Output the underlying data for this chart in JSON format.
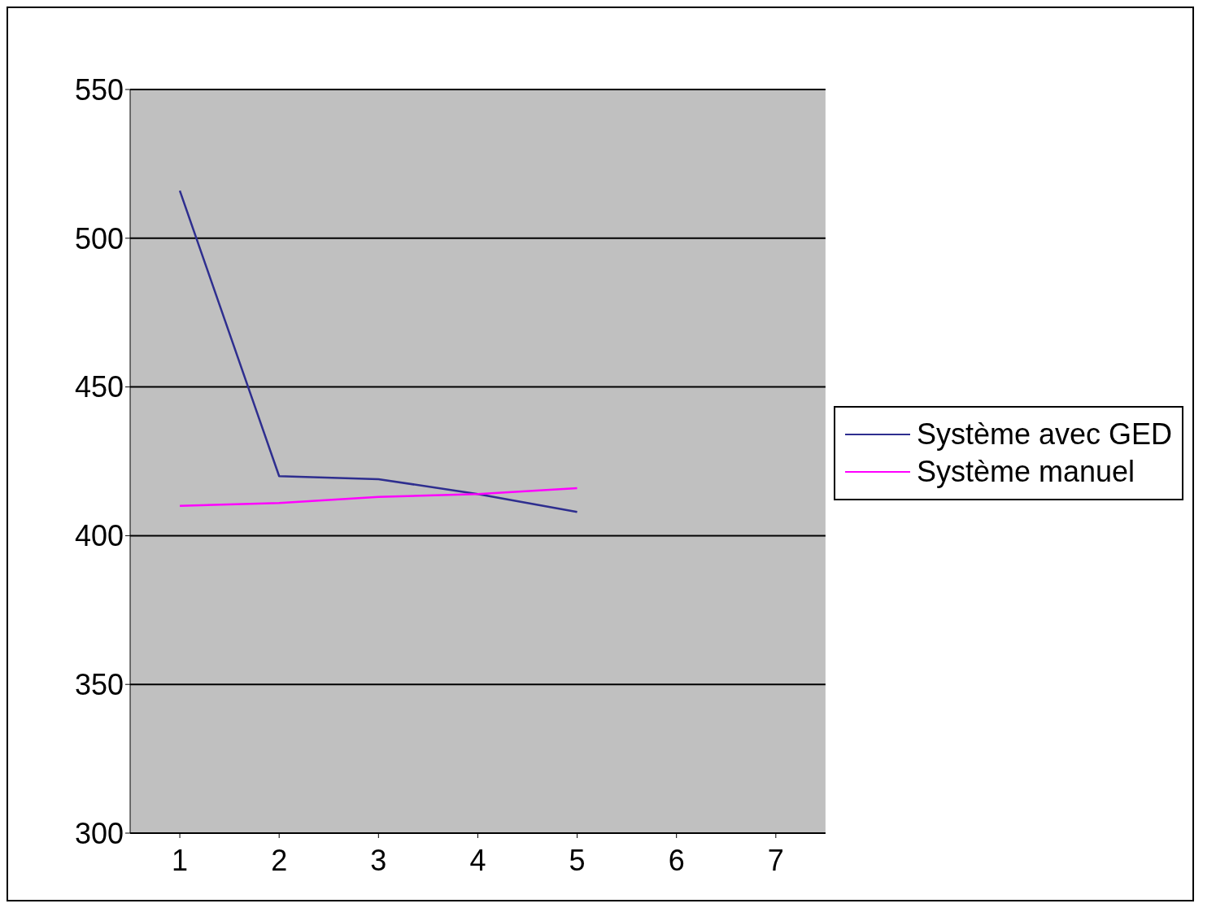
{
  "chart_data": {
    "type": "line",
    "categories": [
      "1",
      "2",
      "3",
      "4",
      "5",
      "6",
      "7"
    ],
    "series": [
      {
        "name": "Système avec GED",
        "color": "#2e2e8f",
        "values": [
          516,
          420,
          419,
          414,
          408,
          null,
          null
        ]
      },
      {
        "name": "Système manuel",
        "color": "#ff00ff",
        "values": [
          410,
          411,
          413,
          414,
          416,
          null,
          null
        ]
      }
    ],
    "ylim": [
      300,
      550
    ],
    "yticks": [
      300,
      350,
      400,
      450,
      500,
      550
    ],
    "grid": "y",
    "legend": "right",
    "marker": "none",
    "line_style": "solid"
  }
}
